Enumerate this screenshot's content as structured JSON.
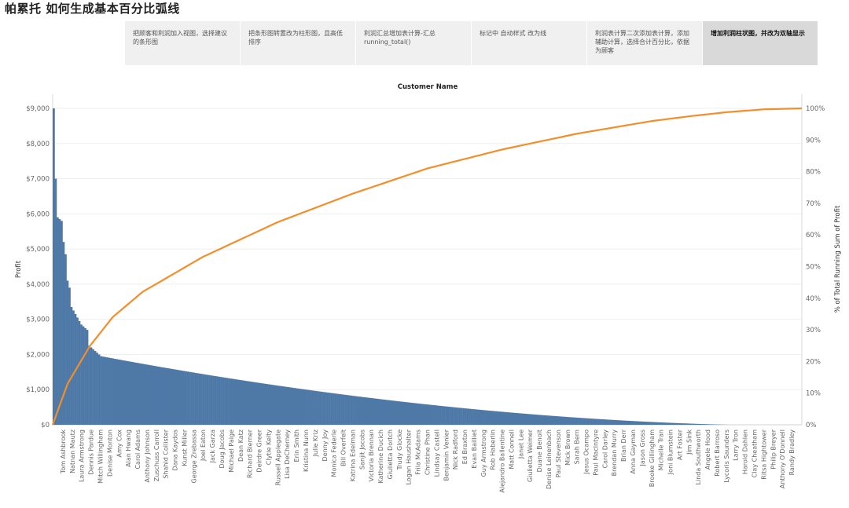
{
  "page": {
    "title": "帕累托 如何生成基本百分比弧线"
  },
  "steps": [
    {
      "label": "把顾客和利润加入视图，选择建议的条形图"
    },
    {
      "label": "把条形图转置改为柱形图，且高低排序"
    },
    {
      "label": "利润汇总增加表计算-汇总 running_total()"
    },
    {
      "label": "标记中 自动样式 改为线"
    },
    {
      "label": "利润表计算二次添加表计算，添加辅助计算，选择合计百分比，依据为顾客"
    },
    {
      "label": "增加利润柱状图，并改为双轴显示"
    }
  ],
  "chart_data": {
    "type": "bar",
    "title": "Customer Name",
    "ylabel_left": "Profit",
    "ylabel_right": "% of Total Running Sum of Profit",
    "ylim_left": [
      0,
      9000
    ],
    "ylim_right": [
      0,
      100
    ],
    "left_ticks": [
      "$0",
      "$1,000",
      "$2,000",
      "$3,000",
      "$4,000",
      "$5,000",
      "$6,000",
      "$7,000",
      "$8,000",
      "$9,000"
    ],
    "right_ticks": [
      "0%",
      "10%",
      "20%",
      "30%",
      "40%",
      "50%",
      "60%",
      "70%",
      "80%",
      "90%",
      "100%"
    ],
    "bar_color": "#4e79a7",
    "line_color": "#f28e2b",
    "categories": [
      "Tom Ashbrook",
      "Natnan Mautz",
      "Laura Armstrong",
      "Dennis Pardue",
      "Mitch Willingham",
      "Denise Monton",
      "Amy Cox",
      "Alan Hwang",
      "Carol Adams",
      "Anthony Johnson",
      "Zuschuss Carroll",
      "Shahid Collister",
      "Dana Kaydos",
      "Kunst Miller",
      "George Zrebassa",
      "Joel Eaton",
      "Jack Garza",
      "Doug Jacobs",
      "Michael Paige",
      "Dean Katz",
      "Richard Bierner",
      "Deirdre Greer",
      "Clytie Kelty",
      "Russell Applegate",
      "Lisa DeCherney",
      "Erin Smith",
      "Kristina Nunn",
      "Julie Kriz",
      "Denny Joy",
      "Monica Federle",
      "Bill Overfelt",
      "Katrina Edelman",
      "Sanjit Jacobs",
      "Victoria Brennan",
      "Katherine Ducich",
      "Giulietta Dortch",
      "Trudy Glocke",
      "Logan Haushalter",
      "Frila McAdams",
      "Christine Phan",
      "Lindsay Castell",
      "Benjamin Venier",
      "Nick Radford",
      "Ed Braxton",
      "Evan Bailliet",
      "Guy Armstrong",
      "Rob Haberlin",
      "Alejandro Ballentine",
      "Matt Connell",
      "Janet Lee",
      "Giulietta Weimer",
      "Duane Benoit",
      "Denise Leinenbach",
      "Paul Stevenson",
      "Mick Brown",
      "Sarah Bern",
      "Jesus Ocampo",
      "Paul MacIntyre",
      "Carol Darley",
      "Brendan Murry",
      "Brian Derr",
      "Anna Gayman",
      "Jason Gross",
      "Brooke Gillingham",
      "Michelle Tran",
      "Joni Blumstein",
      "Art Foster",
      "Jim Sink",
      "Linda Southworth",
      "Angele Hood",
      "Robert Barroso",
      "Lycoris Saunders",
      "Larry Tron",
      "Harold Dahlen",
      "Clay Cheatham",
      "Ritsa Hightower",
      "Philip Breyer",
      "Anthony O'Donnell",
      "Randy Bradley"
    ],
    "bar_profile": {
      "top_values": [
        9000,
        7000,
        5900,
        5850,
        5800,
        5200,
        4850,
        4100,
        3900,
        3350,
        3250,
        3150,
        3050,
        2950,
        2850,
        2800,
        2750,
        2700,
        2250,
        2200,
        2150,
        2100,
        2050,
        2000
      ],
      "count": 380,
      "first_label_value": 1950,
      "last_value": 0
    },
    "cumulative_percent": {
      "x_fraction": [
        0,
        0.02,
        0.05,
        0.08,
        0.12,
        0.2,
        0.3,
        0.4,
        0.5,
        0.6,
        0.7,
        0.8,
        0.85,
        0.9,
        0.95,
        1.0
      ],
      "y": [
        0,
        13,
        25,
        34,
        42,
        53,
        64,
        73,
        81,
        87,
        92,
        96,
        97.5,
        98.8,
        99.7,
        100
      ]
    }
  }
}
